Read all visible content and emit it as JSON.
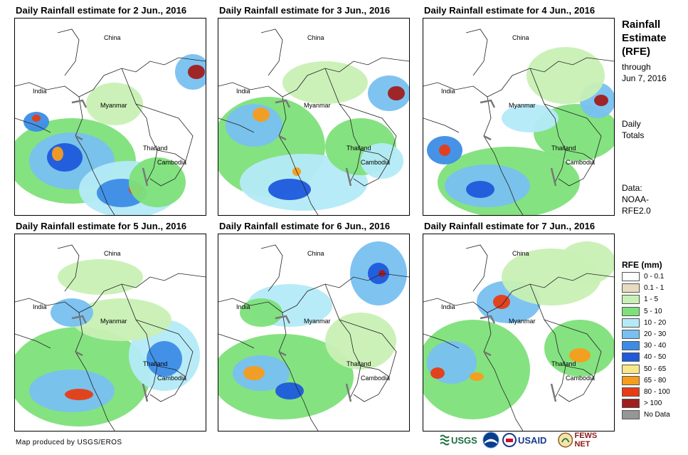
{
  "panels": [
    {
      "title": "Daily Rainfall estimate for 2 Jun., 2016"
    },
    {
      "title": "Daily Rainfall estimate for 3 Jun., 2016"
    },
    {
      "title": "Daily Rainfall estimate for 4 Jun., 2016"
    },
    {
      "title": "Daily Rainfall estimate for 5 Jun., 2016"
    },
    {
      "title": "Daily Rainfall estimate for 6 Jun., 2016"
    },
    {
      "title": "Daily Rainfall estimate for 7 Jun., 2016"
    }
  ],
  "map_labels": {
    "china": "China",
    "india": "India",
    "myanmar": "Myanmar",
    "thailand": "Thailand",
    "cambodia": "Cambodia"
  },
  "sidebar": {
    "title_line1": "Rainfall",
    "title_line2": "Estimate",
    "title_line3": "(RFE)",
    "through": "through",
    "date": "Jun 7, 2016",
    "totals_line1": "Daily",
    "totals_line2": "Totals",
    "data_line1": "Data:",
    "data_line2": "NOAA-",
    "data_line3": "RFE2.0"
  },
  "legend": {
    "title": "RFE (mm)",
    "items": [
      {
        "label": "0 - 0.1",
        "color": "#ffffff"
      },
      {
        "label": "0.1 - 1",
        "color": "#e8dcc0"
      },
      {
        "label": "1 - 5",
        "color": "#c8f0b4"
      },
      {
        "label": "5 - 10",
        "color": "#7ee07a"
      },
      {
        "label": "10 - 20",
        "color": "#b4eaf8"
      },
      {
        "label": "20 - 30",
        "color": "#78c0f0"
      },
      {
        "label": "30 - 40",
        "color": "#3c8ce6"
      },
      {
        "label": "40 - 50",
        "color": "#1e5adc"
      },
      {
        "label": "50 - 65",
        "color": "#f8e888"
      },
      {
        "label": "65 - 80",
        "color": "#f89c1c"
      },
      {
        "label": "80 - 100",
        "color": "#e83c14"
      },
      {
        "label": "> 100",
        "color": "#a01e1e"
      },
      {
        "label": "No Data",
        "color": "#969696"
      }
    ]
  },
  "credit": "Map produced by USGS/EROS",
  "logos": {
    "usgs": "USGS",
    "usaid": "USAID",
    "fewsnet": "FEWS NET"
  },
  "icons": {
    "noaa": "noaa-logo-icon",
    "fewsnet": "fewsnet-logo-icon"
  }
}
